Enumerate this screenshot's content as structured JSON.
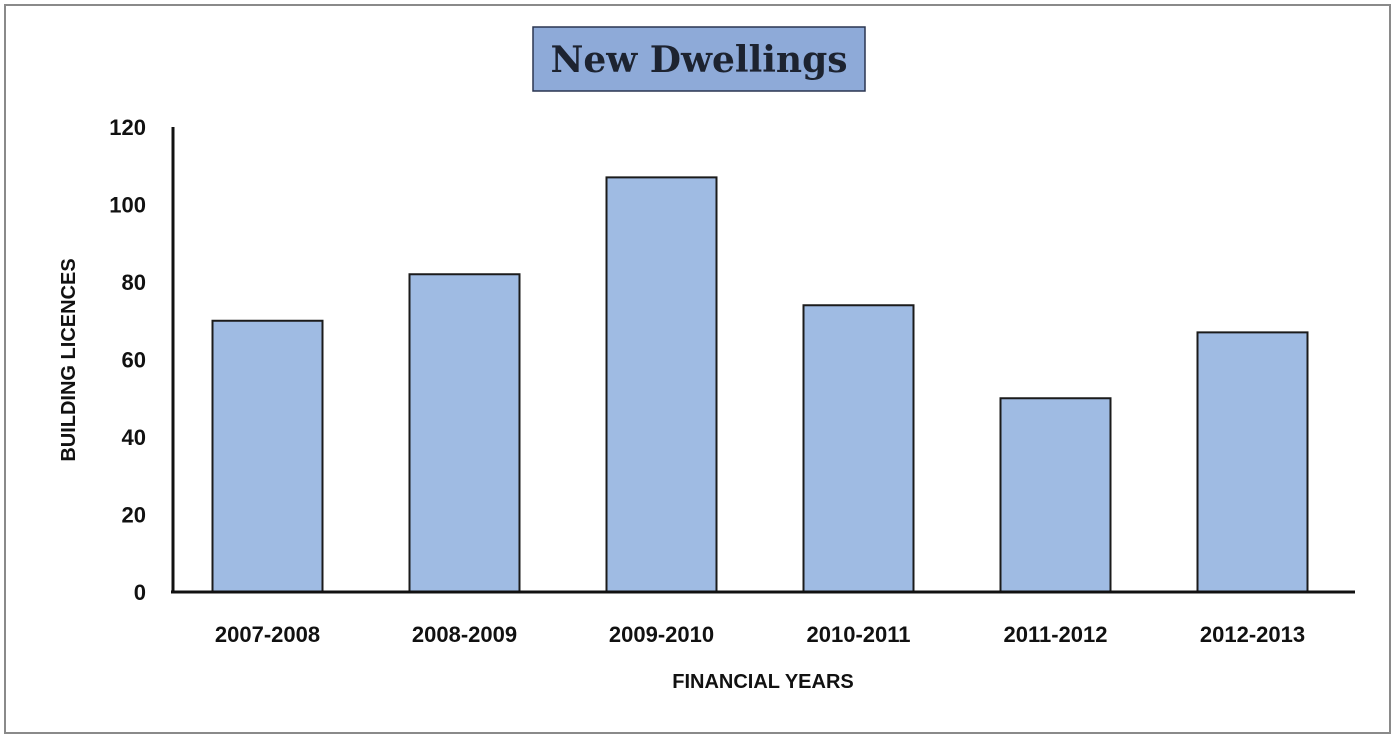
{
  "chart_data": {
    "type": "bar",
    "title": "New Dwellings",
    "xlabel": "FINANCIAL YEARS",
    "ylabel": "BUILDING LICENCES",
    "categories": [
      "2007-2008",
      "2008-2009",
      "2009-2010",
      "2010-2011",
      "2011-2012",
      "2012-2013"
    ],
    "values": [
      70,
      82,
      107,
      74,
      50,
      67
    ],
    "ylim": [
      0,
      120
    ],
    "yticks": [
      0,
      20,
      40,
      60,
      80,
      100,
      120
    ],
    "grid": false,
    "legend": "none",
    "colors": {
      "bar": "#9fbbe3",
      "bar_edge": "#1b1b1b",
      "title_box": "#8eaad8"
    }
  }
}
